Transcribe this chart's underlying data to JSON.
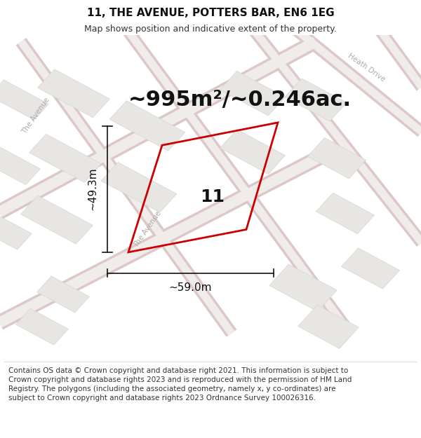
{
  "title": "11, THE AVENUE, POTTERS BAR, EN6 1EG",
  "subtitle": "Map shows position and indicative extent of the property.",
  "area_text": "~995m²/~0.246ac.",
  "number_label": "11",
  "dim_width": "~59.0m",
  "dim_height": "~49.3m",
  "copyright_text": "Contains OS data © Crown copyright and database right 2021. This information is subject to Crown copyright and database rights 2023 and is reproduced with the permission of HM Land Registry. The polygons (including the associated geometry, namely x, y co-ordinates) are subject to Crown copyright and database rights 2023 Ordnance Survey 100026316.",
  "bg_color": "#f0eeea",
  "map_bg": "#f2f0ee",
  "road_fill": "#f8f6f4",
  "road_stroke": "#e8c8c8",
  "property_color": "#cc0000",
  "dim_line_color": "#111111",
  "title_fontsize": 11,
  "subtitle_fontsize": 9,
  "area_fontsize": 22,
  "number_fontsize": 18,
  "dim_fontsize": 11,
  "copyright_fontsize": 7.5,
  "street_label_color": "#aaaaaa",
  "street_label_size": 7.5,
  "block_fc": "#e8e6e3",
  "block_ec": "#d8d4d0"
}
